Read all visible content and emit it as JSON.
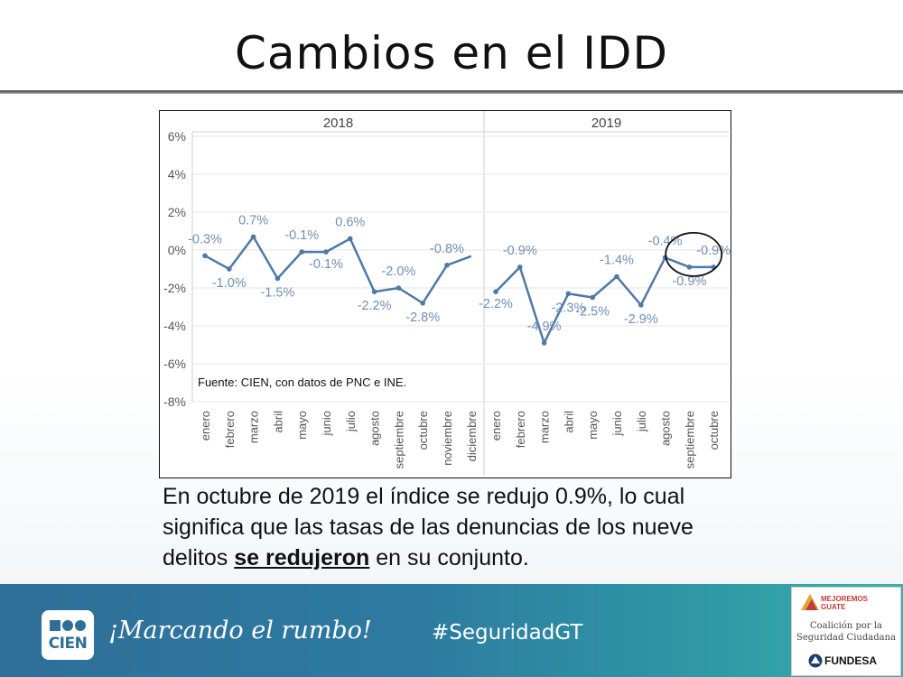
{
  "slide": {
    "title": "Cambios en el IDD",
    "caption_before": "En octubre de 2019 el índice se redujo 0.9%, lo cual significa que las tasas de las denuncias de los nueve delitos ",
    "caption_bold": "se redujeron",
    "caption_after": " en su conjunto."
  },
  "colors": {
    "line": "#4e79a7",
    "label": "#6f8fb3",
    "grid": "#e6e6e6",
    "axis_text": "#555555"
  },
  "chart_data": {
    "type": "line",
    "ylabel": "",
    "ylim": [
      -8,
      6
    ],
    "y_ticks": [
      6,
      4,
      2,
      0,
      -2,
      -4,
      -6,
      -8
    ],
    "y_tick_labels": [
      "6%",
      "4%",
      "2%",
      "0%",
      "-2%",
      "-4%",
      "-6%",
      "-8%"
    ],
    "source_note": "Fuente: CIEN, con datos de PNC e INE.",
    "highlight": {
      "panel": "2019",
      "category": "octubre",
      "shape": "circle"
    },
    "panels": [
      {
        "name": "2018",
        "categories": [
          "enero",
          "febrero",
          "marzo",
          "abril",
          "mayo",
          "junio",
          "julio",
          "agosto",
          "septiembre",
          "octubre",
          "noviembre",
          "diciembre"
        ],
        "values": [
          -0.3,
          -1.0,
          0.7,
          -1.5,
          -0.1,
          -0.1,
          0.6,
          -2.2,
          -2.0,
          -2.8,
          -0.8,
          null
        ],
        "labels": [
          "-0.3%",
          "-1.0%",
          "0.7%",
          "-1.5%",
          "-0.1%",
          "-0.1%",
          "0.6%",
          "-2.2%",
          "-2.0%",
          "-2.8%",
          "-0.8%",
          ""
        ]
      },
      {
        "name": "2019",
        "categories": [
          "enero",
          "febrero",
          "marzo",
          "abril",
          "mayo",
          "junio",
          "julio",
          "agosto",
          "septiembre",
          "octubre"
        ],
        "values": [
          -2.2,
          -0.9,
          -4.9,
          -2.3,
          -2.5,
          -1.4,
          -2.9,
          -0.4,
          -0.9,
          -0.9
        ],
        "labels": [
          "-2.2%",
          "-0.9%",
          "-4.9%",
          "-2.3%",
          "-2.5%",
          "-1.4%",
          "-2.9%",
          "-0.4%",
          "-0.9%",
          "-0.9%"
        ]
      }
    ]
  },
  "footer": {
    "logo_text": "CIEN",
    "tagline": "¡Marcando el rumbo!",
    "hashtag": "#SeguridadGT",
    "partner_line1": "MEJOREMOS",
    "partner_line2": "GUATE",
    "coalicion_line1": "Coalición por la",
    "coalicion_line2": "Seguridad Ciudadana",
    "fundesa": "FUNDESA"
  }
}
